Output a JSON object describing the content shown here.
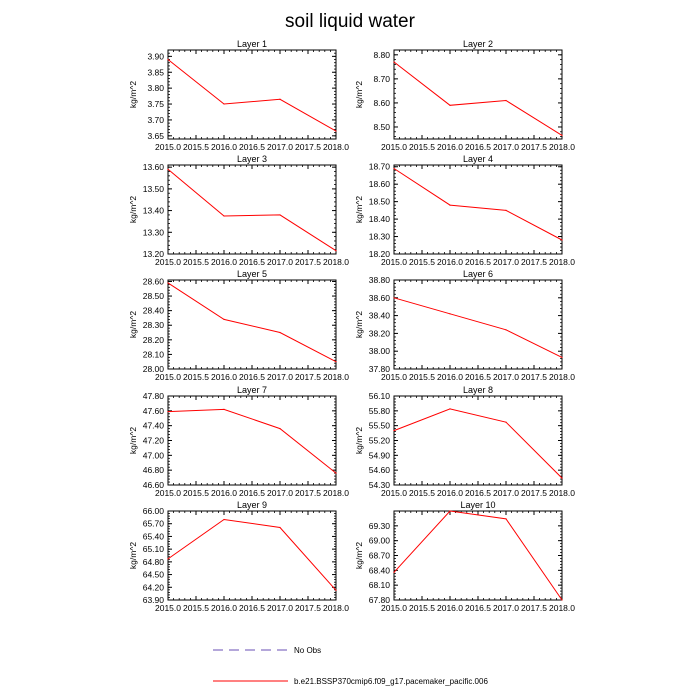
{
  "title": "soil liquid water",
  "chart_data": [
    {
      "type": "line",
      "title": "Layer 1",
      "ylabel": "kg/m^2",
      "x": [
        2015,
        2016,
        2017,
        2018
      ],
      "values": [
        3.89,
        3.75,
        3.765,
        3.665
      ],
      "xlim": [
        2015,
        2018
      ],
      "ylim": [
        3.64,
        3.92
      ],
      "yticks": [
        "3.65",
        "3.70",
        "3.75",
        "3.80",
        "3.85",
        "3.90"
      ],
      "xticks": [
        "2015.0",
        "2015.5",
        "2016.0",
        "2016.5",
        "2017.0",
        "2017.5",
        "2018.0"
      ]
    },
    {
      "type": "line",
      "title": "Layer 2",
      "ylabel": "kg/m^2",
      "x": [
        2015,
        2016,
        2017,
        2018
      ],
      "values": [
        8.77,
        8.59,
        8.61,
        8.465
      ],
      "xlim": [
        2015,
        2018
      ],
      "ylim": [
        8.45,
        8.82
      ],
      "yticks": [
        "8.50",
        "8.60",
        "8.70",
        "8.80"
      ],
      "xticks": [
        "2015.0",
        "2015.5",
        "2016.0",
        "2016.5",
        "2017.0",
        "2017.5",
        "2018.0"
      ]
    },
    {
      "type": "line",
      "title": "Layer 3",
      "ylabel": "kg/m^2",
      "x": [
        2015,
        2016,
        2017,
        2018
      ],
      "values": [
        13.59,
        13.375,
        13.38,
        13.215
      ],
      "xlim": [
        2015,
        2018
      ],
      "ylim": [
        13.2,
        13.61
      ],
      "yticks": [
        "13.20",
        "13.30",
        "13.40",
        "13.50",
        "13.60"
      ],
      "xticks": [
        "2015.0",
        "2015.5",
        "2016.0",
        "2016.5",
        "2017.0",
        "2017.5",
        "2018.0"
      ]
    },
    {
      "type": "line",
      "title": "Layer 4",
      "ylabel": "kg/m^2",
      "x": [
        2015,
        2016,
        2017,
        2018
      ],
      "values": [
        18.69,
        18.48,
        18.45,
        18.28
      ],
      "xlim": [
        2015,
        2018
      ],
      "ylim": [
        18.2,
        18.71
      ],
      "yticks": [
        "18.20",
        "18.30",
        "18.40",
        "18.50",
        "18.60",
        "18.70"
      ],
      "xticks": [
        "2015.0",
        "2015.5",
        "2016.0",
        "2016.5",
        "2017.0",
        "2017.5",
        "2018.0"
      ]
    },
    {
      "type": "line",
      "title": "Layer 5",
      "ylabel": "kg/m^2",
      "x": [
        2015,
        2016,
        2017,
        2018
      ],
      "values": [
        28.59,
        28.34,
        28.25,
        28.05
      ],
      "xlim": [
        2015,
        2018
      ],
      "ylim": [
        28.0,
        28.61
      ],
      "yticks": [
        "28.00",
        "28.10",
        "28.20",
        "28.30",
        "28.40",
        "28.50",
        "28.60"
      ],
      "xticks": [
        "2015.0",
        "2015.5",
        "2016.0",
        "2016.5",
        "2017.0",
        "2017.5",
        "2018.0"
      ]
    },
    {
      "type": "line",
      "title": "Layer 6",
      "ylabel": "kg/m^2",
      "x": [
        2015,
        2016,
        2017,
        2018
      ],
      "values": [
        38.6,
        38.42,
        38.24,
        37.93
      ],
      "xlim": [
        2015,
        2018
      ],
      "ylim": [
        37.8,
        38.8
      ],
      "yticks": [
        "37.80",
        "38.00",
        "38.20",
        "38.40",
        "38.60",
        "38.80"
      ],
      "xticks": [
        "2015.0",
        "2015.5",
        "2016.0",
        "2016.5",
        "2017.0",
        "2017.5",
        "2018.0"
      ]
    },
    {
      "type": "line",
      "title": "Layer 7",
      "ylabel": "kg/m^2",
      "x": [
        2015,
        2016,
        2017,
        2018
      ],
      "values": [
        47.59,
        47.62,
        47.36,
        46.76
      ],
      "xlim": [
        2015,
        2018
      ],
      "ylim": [
        46.6,
        47.8
      ],
      "yticks": [
        "46.60",
        "46.80",
        "47.00",
        "47.20",
        "47.40",
        "47.60",
        "47.80"
      ],
      "xticks": [
        "2015.0",
        "2015.5",
        "2016.0",
        "2016.5",
        "2017.0",
        "2017.5",
        "2018.0"
      ]
    },
    {
      "type": "line",
      "title": "Layer 8",
      "ylabel": "kg/m^2",
      "x": [
        2015,
        2016,
        2017,
        2018
      ],
      "values": [
        55.4,
        55.84,
        55.57,
        54.44
      ],
      "xlim": [
        2015,
        2018
      ],
      "ylim": [
        54.3,
        56.1
      ],
      "yticks": [
        "54.30",
        "54.60",
        "54.90",
        "55.20",
        "55.50",
        "55.80",
        "56.10"
      ],
      "xticks": [
        "2015.0",
        "2015.5",
        "2016.0",
        "2016.5",
        "2017.0",
        "2017.5",
        "2018.0"
      ]
    },
    {
      "type": "line",
      "title": "Layer 9",
      "ylabel": "kg/m^2",
      "x": [
        2015,
        2016,
        2017,
        2018
      ],
      "values": [
        64.87,
        65.8,
        65.61,
        64.13
      ],
      "xlim": [
        2015,
        2018
      ],
      "ylim": [
        63.9,
        66.0
      ],
      "yticks": [
        "63.90",
        "64.20",
        "64.50",
        "64.80",
        "65.10",
        "65.40",
        "65.70",
        "66.00"
      ],
      "xticks": [
        "2015.0",
        "2015.5",
        "2016.0",
        "2016.5",
        "2017.0",
        "2017.5",
        "2018.0"
      ]
    },
    {
      "type": "line",
      "title": "Layer 10",
      "ylabel": "kg/m^2",
      "x": [
        2015,
        2016,
        2017,
        2018
      ],
      "values": [
        68.36,
        69.6,
        69.44,
        67.8
      ],
      "xlim": [
        2015,
        2018
      ],
      "ylim": [
        67.8,
        69.6
      ],
      "yticks": [
        "67.80",
        "68.10",
        "68.40",
        "68.70",
        "69.00",
        "69.30"
      ],
      "xticks": [
        "2015.0",
        "2015.5",
        "2016.0",
        "2016.5",
        "2017.0",
        "2017.5",
        "2018.0"
      ]
    }
  ],
  "legend": {
    "no_obs": "No Obs",
    "case": "b.e21.BSSP370cmip6.f09_g17.pacemaker_pacific.006"
  },
  "colors": {
    "line": "#ff0000",
    "no_obs": "#6a4fb5",
    "axis": "#000000"
  }
}
